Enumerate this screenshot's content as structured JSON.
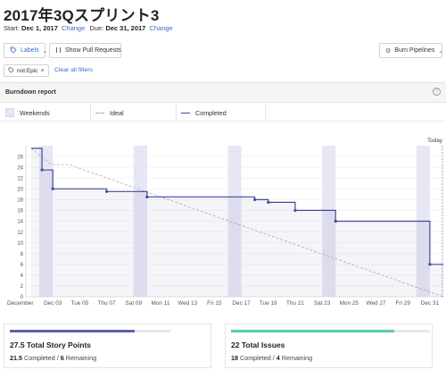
{
  "header": {
    "title": "2017年3Qスプリント3",
    "start_label": "Start:",
    "start_value": "Dec 1, 2017",
    "due_label": "Due:",
    "due_value": "Dec 31, 2017",
    "change_label": "Change"
  },
  "toolbar": {
    "labels_button": "Labels",
    "pull_requests_button": "Show Pull Requests",
    "burn_pipelines_button": "Burn Pipelines",
    "filter_chip": "not:Epic",
    "clear_filters": "Clear all filters"
  },
  "report": {
    "title": "Burndown report",
    "help": "?",
    "legend": [
      "Weekends",
      "Ideal",
      "Completed"
    ],
    "today_label": "Today"
  },
  "colors": {
    "accent_link": "#3b6fc4",
    "weekend_band": "#e6e6f4",
    "completed_line": "#3f4c9a",
    "ideal_line": "#b0b0b0",
    "points_bar": "#5c5fb0",
    "issues_bar": "#5bcf9a"
  },
  "chart_data": {
    "type": "line",
    "x_tick_labels": [
      "December",
      "Dec 03",
      "Tue 05",
      "Thu 07",
      "Sat 09",
      "Mon 11",
      "Wed 13",
      "Fri 15",
      "Dec 17",
      "Tue 19",
      "Thu 21",
      "Sat 23",
      "Mon 25",
      "Wed 27",
      "Fri 29",
      "Dec 31"
    ],
    "x_tick_days": [
      1,
      3,
      5,
      7,
      9,
      11,
      13,
      15,
      17,
      19,
      21,
      23,
      25,
      27,
      29,
      31
    ],
    "xlim": [
      1,
      32
    ],
    "ylim": [
      0,
      28
    ],
    "y_ticks": [
      0,
      2,
      4,
      6,
      8,
      10,
      12,
      14,
      16,
      18,
      20,
      22,
      24,
      26
    ],
    "weekends": [
      [
        2,
        3
      ],
      [
        9,
        10
      ],
      [
        16,
        17
      ],
      [
        23,
        24
      ],
      [
        30,
        31
      ]
    ],
    "series": [
      {
        "name": "Ideal",
        "style": "dashed",
        "points": [
          [
            1.4,
            27.5
          ],
          [
            2.9,
            24.5
          ],
          [
            4.2,
            24.5
          ],
          [
            32,
            0
          ]
        ]
      },
      {
        "name": "Completed",
        "style": "step",
        "points": [
          [
            1.4,
            27.5
          ],
          [
            2.2,
            27.5
          ],
          [
            2.2,
            23.5
          ],
          [
            3.0,
            23.5
          ],
          [
            3.0,
            20
          ],
          [
            7.0,
            20
          ],
          [
            7.0,
            19.5
          ],
          [
            10.0,
            19.5
          ],
          [
            10.0,
            18.5
          ],
          [
            18.0,
            18.5
          ],
          [
            18.0,
            18
          ],
          [
            19.0,
            18
          ],
          [
            19.0,
            17.5
          ],
          [
            21.0,
            17.5
          ],
          [
            21.0,
            16
          ],
          [
            24.0,
            16
          ],
          [
            24.0,
            14
          ],
          [
            31.0,
            14
          ],
          [
            31.0,
            6
          ],
          [
            32,
            6
          ]
        ]
      }
    ],
    "markers": [
      [
        2.2,
        23.5
      ],
      [
        3.0,
        20
      ],
      [
        7.0,
        19.5
      ],
      [
        10.0,
        18.5
      ],
      [
        18.0,
        18
      ],
      [
        19.0,
        17.5
      ],
      [
        21.0,
        16
      ],
      [
        24.0,
        14
      ],
      [
        31.0,
        6
      ]
    ],
    "today_day": 32,
    "grid": "horizontal"
  },
  "summary": {
    "points": {
      "total_value": "27.5",
      "total_label": "Total Story Points",
      "completed_value": "21.5",
      "completed_label": "Completed",
      "separator": "/",
      "remaining_value": "6",
      "remaining_label": "Remaining",
      "progress_fraction": 0.78
    },
    "issues": {
      "total_value": "22",
      "total_label": "Total Issues",
      "completed_value": "18",
      "completed_label": "Completed",
      "separator": "/",
      "remaining_value": "4",
      "remaining_label": "Remaining",
      "progress_fraction": 0.82
    }
  }
}
